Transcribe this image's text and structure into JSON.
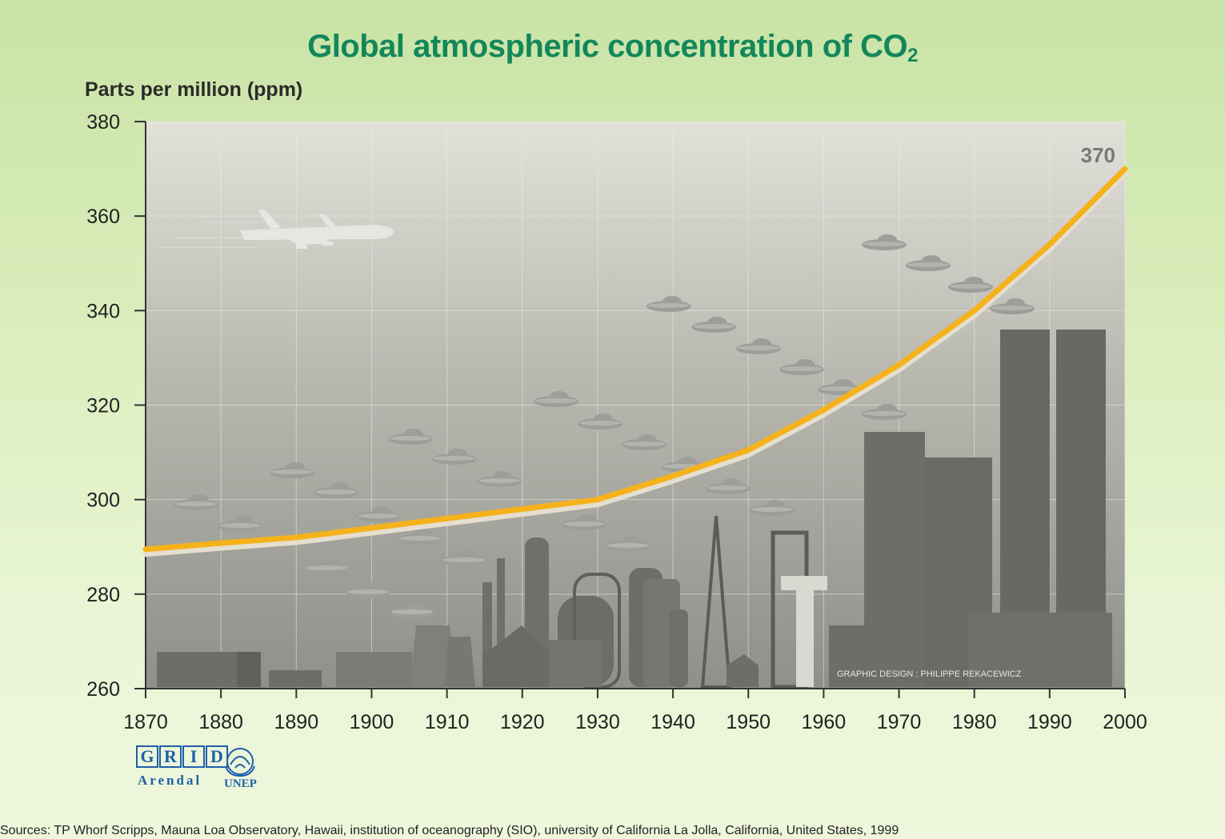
{
  "chart_data": {
    "type": "line",
    "title": "Global atmospheric concentration of CO",
    "title_subscript": "2",
    "ylabel": "Parts per million (ppm)",
    "xlim": [
      1870,
      2000
    ],
    "ylim": [
      260,
      380
    ],
    "x_ticks": [
      "1870",
      "1880",
      "1890",
      "1900",
      "1910",
      "1920",
      "1930",
      "1940",
      "1950",
      "1960",
      "1970",
      "1980",
      "1990",
      "2000"
    ],
    "y_ticks": [
      "260",
      "280",
      "300",
      "320",
      "340",
      "360",
      "380"
    ],
    "x": [
      1870,
      1880,
      1890,
      1900,
      1910,
      1920,
      1930,
      1940,
      1950,
      1960,
      1970,
      1980,
      1990,
      2000
    ],
    "series": [
      {
        "values": [
          289.5,
          290.8,
          292,
          294,
          296,
          298,
          300,
          305,
          310.5,
          319,
          328.5,
          340,
          354,
          370
        ],
        "color": "#f5b21b"
      }
    ],
    "annotation": {
      "text": "370",
      "x": 2000,
      "y": 370
    },
    "grid": true,
    "credit": "GRAPHIC DESIGN : PHILIPPE REKACEWICZ"
  },
  "logos": {
    "grid_letters": [
      "G",
      "R",
      "I",
      "D"
    ],
    "arendal": "Arendal",
    "unep": "UNEP"
  },
  "sources": "Sources: TP Whorf  Scripps, Mauna Loa Observatory, Hawaii, institution of oceanography (SIO), university of California La Jolla, California, United States, 1999",
  "colors": {
    "title": "#13875a",
    "line": "#f5b21b",
    "line_shadow": "#e4dfcf",
    "logo_blue": "#1f5fa8"
  }
}
